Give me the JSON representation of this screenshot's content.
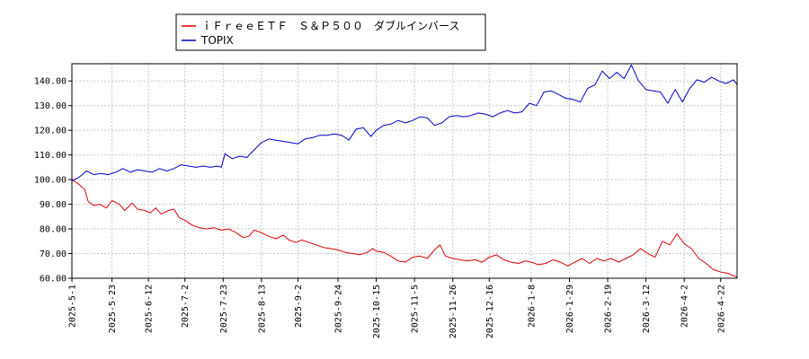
{
  "chart_data": {
    "type": "line",
    "title": "",
    "xlabel": "",
    "ylabel": "",
    "ylim": [
      60,
      147
    ],
    "yticks": [
      60,
      70,
      80,
      90,
      100,
      110,
      120,
      130,
      140
    ],
    "ytick_labels": [
      "60.00",
      "70.00",
      "80.00",
      "90.00",
      "100.00",
      "110.00",
      "120.00",
      "130.00",
      "140.00"
    ],
    "x_range": [
      "2025-05-01",
      "2026-05-01"
    ],
    "xtick_labels": [
      "2025-5-1",
      "2025-5-23",
      "2025-6-12",
      "2025-7-2",
      "2025-7-23",
      "2025-8-13",
      "2025-9-2",
      "2025-9-24",
      "2025-10-15",
      "2025-11-5",
      "2025-11-26",
      "2025-12-16",
      "2026-1-8",
      "2026-1-29",
      "2026-2-19",
      "2026-3-12",
      "2026-4-2",
      "2026-4-22"
    ],
    "xtick_dates": [
      "2025-05-01",
      "2025-05-23",
      "2025-06-12",
      "2025-07-02",
      "2025-07-23",
      "2025-08-13",
      "2025-09-02",
      "2025-09-24",
      "2025-10-15",
      "2025-11-05",
      "2025-11-26",
      "2025-12-16",
      "2026-01-08",
      "2026-01-29",
      "2026-02-19",
      "2026-03-12",
      "2026-04-02",
      "2026-04-22"
    ],
    "grid": true,
    "legend_position": "top-left-outside",
    "series": [
      {
        "name": "ｉＦｒｅｅＥＴＦ　Ｓ＆Ｐ５００　ダブルインバース",
        "color": "#dd0000",
        "points": [
          [
            "2025-05-01",
            100.0
          ],
          [
            "2025-05-05",
            98.0
          ],
          [
            "2025-05-08",
            96.0
          ],
          [
            "2025-05-10",
            91.0
          ],
          [
            "2025-05-13",
            89.5
          ],
          [
            "2025-05-16",
            90.0
          ],
          [
            "2025-05-20",
            88.5
          ],
          [
            "2025-05-23",
            91.5
          ],
          [
            "2025-05-27",
            90.0
          ],
          [
            "2025-05-30",
            87.5
          ],
          [
            "2025-06-03",
            90.5
          ],
          [
            "2025-06-06",
            88.0
          ],
          [
            "2025-06-10",
            87.5
          ],
          [
            "2025-06-13",
            86.5
          ],
          [
            "2025-06-16",
            88.5
          ],
          [
            "2025-06-19",
            86.0
          ],
          [
            "2025-06-23",
            87.5
          ],
          [
            "2025-06-26",
            88.0
          ],
          [
            "2025-06-29",
            84.5
          ],
          [
            "2025-07-02",
            83.5
          ],
          [
            "2025-07-06",
            81.5
          ],
          [
            "2025-07-10",
            80.5
          ],
          [
            "2025-07-14",
            80.0
          ],
          [
            "2025-07-18",
            80.5
          ],
          [
            "2025-07-22",
            79.5
          ],
          [
            "2025-07-26",
            80.0
          ],
          [
            "2025-07-30",
            78.5
          ],
          [
            "2025-08-03",
            76.5
          ],
          [
            "2025-08-06",
            77.0
          ],
          [
            "2025-08-09",
            79.5
          ],
          [
            "2025-08-13",
            78.5
          ],
          [
            "2025-08-17",
            77.0
          ],
          [
            "2025-08-21",
            76.0
          ],
          [
            "2025-08-25",
            77.5
          ],
          [
            "2025-08-28",
            75.5
          ],
          [
            "2025-09-01",
            74.5
          ],
          [
            "2025-09-04",
            75.5
          ],
          [
            "2025-09-08",
            74.5
          ],
          [
            "2025-09-12",
            73.5
          ],
          [
            "2025-09-16",
            72.5
          ],
          [
            "2025-09-20",
            72.0
          ],
          [
            "2025-09-24",
            71.5
          ],
          [
            "2025-09-28",
            70.5
          ],
          [
            "2025-10-02",
            70.0
          ],
          [
            "2025-10-06",
            69.5
          ],
          [
            "2025-10-10",
            70.5
          ],
          [
            "2025-10-13",
            72.0
          ],
          [
            "2025-10-15",
            71.0
          ],
          [
            "2025-10-19",
            70.5
          ],
          [
            "2025-10-23",
            69.0
          ],
          [
            "2025-10-27",
            67.0
          ],
          [
            "2025-10-31",
            66.5
          ],
          [
            "2025-11-04",
            68.5
          ],
          [
            "2025-11-08",
            69.0
          ],
          [
            "2025-11-12",
            68.0
          ],
          [
            "2025-11-16",
            71.5
          ],
          [
            "2025-11-19",
            73.5
          ],
          [
            "2025-11-22",
            69.0
          ],
          [
            "2025-11-26",
            68.0
          ],
          [
            "2025-11-30",
            67.5
          ],
          [
            "2025-12-04",
            67.0
          ],
          [
            "2025-12-08",
            67.5
          ],
          [
            "2025-12-12",
            66.5
          ],
          [
            "2025-12-16",
            68.5
          ],
          [
            "2025-12-20",
            69.5
          ],
          [
            "2025-12-24",
            67.5
          ],
          [
            "2025-12-28",
            66.5
          ],
          [
            "2026-01-01",
            66.0
          ],
          [
            "2026-01-05",
            67.0
          ],
          [
            "2026-01-08",
            66.5
          ],
          [
            "2026-01-12",
            65.5
          ],
          [
            "2026-01-16",
            66.0
          ],
          [
            "2026-01-20",
            67.5
          ],
          [
            "2026-01-24",
            66.5
          ],
          [
            "2026-01-28",
            65.0
          ],
          [
            "2026-02-01",
            66.5
          ],
          [
            "2026-02-05",
            68.0
          ],
          [
            "2026-02-09",
            66.0
          ],
          [
            "2026-02-13",
            68.0
          ],
          [
            "2026-02-17",
            67.0
          ],
          [
            "2026-02-21",
            68.0
          ],
          [
            "2026-02-25",
            66.5
          ],
          [
            "2026-03-01",
            68.0
          ],
          [
            "2026-03-05",
            69.5
          ],
          [
            "2026-03-09",
            72.0
          ],
          [
            "2026-03-13",
            70.0
          ],
          [
            "2026-03-17",
            68.5
          ],
          [
            "2026-03-21",
            75.0
          ],
          [
            "2026-03-25",
            73.5
          ],
          [
            "2026-03-29",
            78.0
          ],
          [
            "2026-04-02",
            74.0
          ],
          [
            "2026-04-06",
            72.0
          ],
          [
            "2026-04-10",
            68.0
          ],
          [
            "2026-04-14",
            66.0
          ],
          [
            "2026-04-18",
            63.5
          ],
          [
            "2026-04-22",
            62.5
          ],
          [
            "2026-04-26",
            62.0
          ],
          [
            "2026-04-29",
            61.0
          ],
          [
            "2026-05-01",
            60.5
          ]
        ]
      },
      {
        "name": "TOPIX",
        "color": "#0000cc",
        "points": [
          [
            "2025-05-01",
            99.5
          ],
          [
            "2025-05-05",
            101.0
          ],
          [
            "2025-05-09",
            103.5
          ],
          [
            "2025-05-13",
            102.0
          ],
          [
            "2025-05-17",
            102.5
          ],
          [
            "2025-05-21",
            102.0
          ],
          [
            "2025-05-25",
            103.0
          ],
          [
            "2025-05-29",
            104.5
          ],
          [
            "2025-06-02",
            103.0
          ],
          [
            "2025-06-06",
            104.0
          ],
          [
            "2025-06-10",
            103.5
          ],
          [
            "2025-06-14",
            103.0
          ],
          [
            "2025-06-18",
            104.5
          ],
          [
            "2025-06-22",
            103.5
          ],
          [
            "2025-06-26",
            104.5
          ],
          [
            "2025-06-30",
            106.0
          ],
          [
            "2025-07-04",
            105.5
          ],
          [
            "2025-07-08",
            105.0
          ],
          [
            "2025-07-12",
            105.5
          ],
          [
            "2025-07-16",
            105.0
          ],
          [
            "2025-07-20",
            105.5
          ],
          [
            "2025-07-22",
            105.0
          ],
          [
            "2025-07-24",
            110.5
          ],
          [
            "2025-07-28",
            108.5
          ],
          [
            "2025-08-01",
            109.5
          ],
          [
            "2025-08-05",
            109.0
          ],
          [
            "2025-08-09",
            112.0
          ],
          [
            "2025-08-13",
            115.0
          ],
          [
            "2025-08-17",
            116.5
          ],
          [
            "2025-08-21",
            116.0
          ],
          [
            "2025-08-25",
            115.5
          ],
          [
            "2025-08-29",
            115.0
          ],
          [
            "2025-09-02",
            114.5
          ],
          [
            "2025-09-06",
            116.5
          ],
          [
            "2025-09-10",
            117.0
          ],
          [
            "2025-09-14",
            118.0
          ],
          [
            "2025-09-18",
            118.0
          ],
          [
            "2025-09-22",
            118.5
          ],
          [
            "2025-09-26",
            118.0
          ],
          [
            "2025-09-30",
            116.0
          ],
          [
            "2025-10-04",
            120.5
          ],
          [
            "2025-10-08",
            121.0
          ],
          [
            "2025-10-12",
            117.5
          ],
          [
            "2025-10-15",
            120.0
          ],
          [
            "2025-10-19",
            122.0
          ],
          [
            "2025-10-23",
            122.5
          ],
          [
            "2025-10-27",
            124.0
          ],
          [
            "2025-10-31",
            123.0
          ],
          [
            "2025-11-04",
            124.0
          ],
          [
            "2025-11-08",
            125.5
          ],
          [
            "2025-11-12",
            125.0
          ],
          [
            "2025-11-16",
            122.0
          ],
          [
            "2025-11-20",
            123.0
          ],
          [
            "2025-11-24",
            125.5
          ],
          [
            "2025-11-28",
            126.0
          ],
          [
            "2025-12-02",
            125.5
          ],
          [
            "2025-12-06",
            126.0
          ],
          [
            "2025-12-10",
            127.0
          ],
          [
            "2025-12-14",
            126.5
          ],
          [
            "2025-12-18",
            125.5
          ],
          [
            "2025-12-22",
            127.0
          ],
          [
            "2025-12-26",
            128.0
          ],
          [
            "2025-12-30",
            127.0
          ],
          [
            "2026-01-03",
            127.5
          ],
          [
            "2026-01-07",
            131.0
          ],
          [
            "2026-01-11",
            130.0
          ],
          [
            "2026-01-15",
            135.5
          ],
          [
            "2026-01-19",
            136.0
          ],
          [
            "2026-01-23",
            134.5
          ],
          [
            "2026-01-27",
            133.0
          ],
          [
            "2026-01-31",
            132.5
          ],
          [
            "2026-02-04",
            131.5
          ],
          [
            "2026-02-08",
            137.0
          ],
          [
            "2026-02-12",
            138.5
          ],
          [
            "2026-02-16",
            144.0
          ],
          [
            "2026-02-20",
            141.0
          ],
          [
            "2026-02-24",
            143.5
          ],
          [
            "2026-02-28",
            141.0
          ],
          [
            "2026-03-04",
            146.5
          ],
          [
            "2026-03-08",
            140.0
          ],
          [
            "2026-03-12",
            136.5
          ],
          [
            "2026-03-16",
            136.0
          ],
          [
            "2026-03-20",
            135.5
          ],
          [
            "2026-03-24",
            131.0
          ],
          [
            "2026-03-28",
            136.5
          ],
          [
            "2026-04-01",
            131.5
          ],
          [
            "2026-04-05",
            137.0
          ],
          [
            "2026-04-09",
            140.5
          ],
          [
            "2026-04-13",
            139.5
          ],
          [
            "2026-04-17",
            141.5
          ],
          [
            "2026-04-21",
            140.0
          ],
          [
            "2026-04-25",
            139.0
          ],
          [
            "2026-04-29",
            140.5
          ],
          [
            "2026-05-01",
            138.5
          ]
        ]
      }
    ]
  }
}
